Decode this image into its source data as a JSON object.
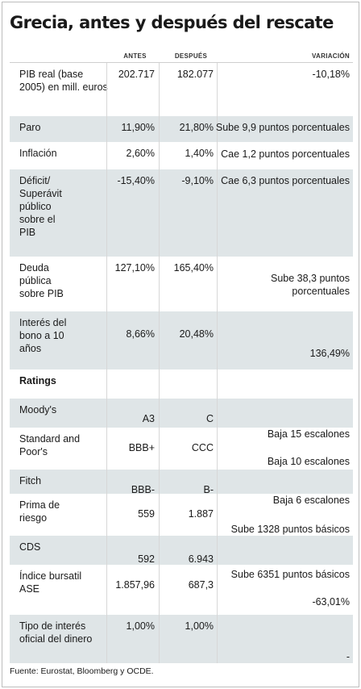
{
  "title": "Grecia, antes y después del rescate",
  "headers": {
    "antes": "ANTES",
    "despues": "DESPUÉS",
    "variacion": "VARIACIÓN"
  },
  "rows": [
    {
      "label": "PIB real (base 2005) en mill. euros",
      "antes": "202.717",
      "despues": "182.077",
      "variacion": "-10,18%"
    },
    {
      "label": "Paro",
      "antes": "11,90%",
      "despues": "21,80%",
      "variacion": "Sube 9,9 puntos porcentuales"
    },
    {
      "label": "Inflación",
      "antes": "2,60%",
      "despues": "1,40%",
      "variacion": "Cae 1,2 puntos porcentuales"
    },
    {
      "label": "Déficit/ Superávit público sobre el PIB",
      "antes": "-15,40%",
      "despues": "-9,10%",
      "variacion": "Cae 6,3 puntos porcentuales"
    },
    {
      "label": "Deuda pública sobre PIB",
      "antes": "127,10%",
      "despues": "165,40%",
      "variacion": "Sube 38,3 puntos porcentuales"
    },
    {
      "label": "Interés del bono a 10 años",
      "antes": "8,66%",
      "despues": "20,48%",
      "variacion": "136,49%"
    },
    {
      "label": "Ratings",
      "antes": "",
      "despues": "",
      "variacion": ""
    },
    {
      "label": "Moody's",
      "antes": "A3",
      "despues": "C",
      "variacion": ""
    },
    {
      "label": "Standard and Poor's",
      "antes": "BBB+",
      "despues": "CCC",
      "variacion": "Baja 15 escalones",
      "variacion2": "Baja 10 escalones"
    },
    {
      "label": "Fitch",
      "antes": "BBB-",
      "despues": "B-",
      "variacion": ""
    },
    {
      "label": "Prima de riesgo",
      "antes": "559",
      "despues": "1.887",
      "variacion": "Baja 6 escalones",
      "variacion2": "Sube 1328 puntos básicos"
    },
    {
      "label": "CDS",
      "antes": "592",
      "despues": "6.943",
      "variacion": ""
    },
    {
      "label": "Índice bursatil ASE",
      "antes": "1.857,96",
      "despues": "687,3",
      "variacion": "Sube 6351 puntos básicos",
      "variacion2": "-63,01%"
    },
    {
      "label": "Tipo de interés oficial del dinero",
      "antes": "1,00%",
      "despues": "1,00%",
      "variacion": "-"
    }
  ],
  "source": "Fuente: Eurostat, Bloomberg y OCDE."
}
